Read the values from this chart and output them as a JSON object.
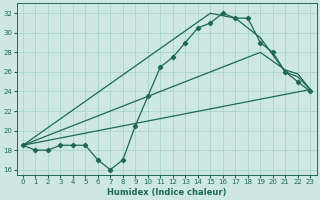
{
  "xlabel": "Humidex (Indice chaleur)",
  "ylabel": "",
  "bg_color": "#cce8e0",
  "grid_color": "#aad4c8",
  "line_color": "#226655",
  "xlim": [
    -0.5,
    23.5
  ],
  "ylim": [
    15.5,
    33.0
  ],
  "xticks": [
    0,
    1,
    2,
    3,
    4,
    5,
    6,
    7,
    8,
    9,
    10,
    11,
    12,
    13,
    14,
    15,
    16,
    17,
    18,
    19,
    20,
    21,
    22,
    23
  ],
  "yticks": [
    16,
    18,
    20,
    22,
    24,
    26,
    28,
    30,
    32
  ],
  "line1_x": [
    0,
    1,
    2,
    3,
    4,
    5,
    6,
    7,
    8,
    9,
    10,
    11,
    12,
    13,
    14,
    15,
    16,
    17,
    18,
    19,
    20,
    21,
    22,
    23
  ],
  "line1_y": [
    18.5,
    18,
    18,
    18.5,
    18.5,
    18.5,
    17,
    16,
    17,
    20.5,
    23.5,
    26.5,
    27.5,
    29,
    30.5,
    31,
    32,
    31.5,
    31.5,
    29,
    28,
    26,
    25,
    24
  ],
  "line2_x": [
    0,
    15,
    17,
    19,
    21,
    22,
    23
  ],
  "line2_y": [
    18.5,
    32,
    31.5,
    29.5,
    26,
    25.5,
    24.2
  ],
  "line3_x": [
    0,
    19,
    21,
    22,
    23
  ],
  "line3_y": [
    18.5,
    28,
    26.2,
    25.8,
    24.2
  ],
  "line4_x": [
    0,
    23
  ],
  "line4_y": [
    18.5,
    24.2
  ]
}
